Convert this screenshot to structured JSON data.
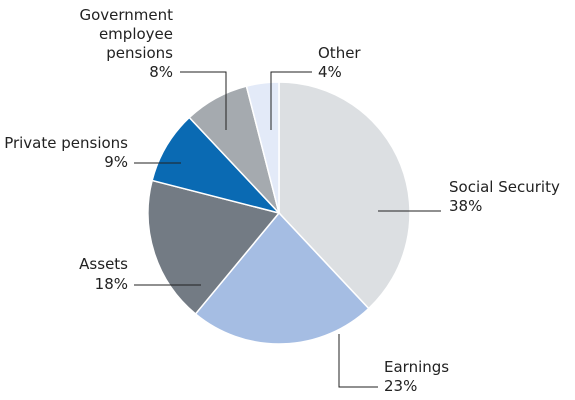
{
  "chart_data": {
    "type": "pie",
    "title": "",
    "start_angle_deg": 0,
    "direction": "clockwise",
    "legend": "none",
    "slices": [
      {
        "name": "Social Security",
        "value": 38,
        "label_lines": [
          "Social Security"
        ],
        "pct_label": "38%",
        "color": "#dcdfe2"
      },
      {
        "name": "Earnings",
        "value": 23,
        "label_lines": [
          "Earnings"
        ],
        "pct_label": "23%",
        "color": "#a5bde3"
      },
      {
        "name": "Assets",
        "value": 18,
        "label_lines": [
          "Assets"
        ],
        "pct_label": "18%",
        "color": "#737b84"
      },
      {
        "name": "Private pensions",
        "value": 9,
        "label_lines": [
          "Private pensions"
        ],
        "pct_label": "9%",
        "color": "#0a6ab3"
      },
      {
        "name": "Government employee pensions",
        "value": 8,
        "label_lines": [
          "Government",
          "employee",
          "pensions"
        ],
        "pct_label": "8%",
        "color": "#a5aaaf"
      },
      {
        "name": "Other",
        "value": 4,
        "label_lines": [
          "Other"
        ],
        "pct_label": "4%",
        "color": "#e3eaf8"
      }
    ]
  }
}
